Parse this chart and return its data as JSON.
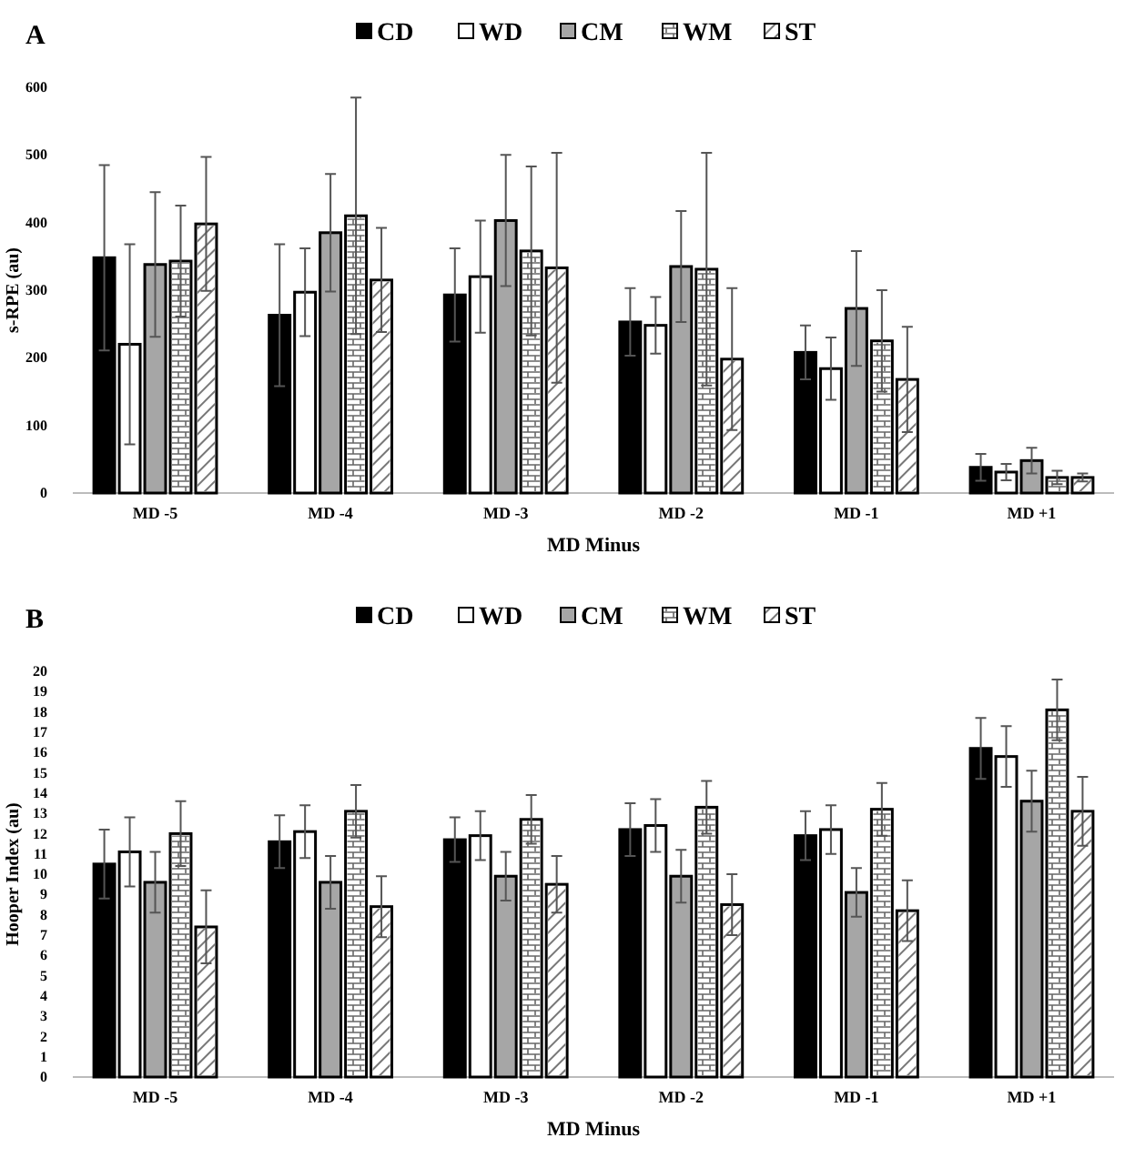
{
  "chart_data": [
    {
      "type": "bar",
      "title": "A",
      "xlabel": "MD Minus",
      "ylabel": "s-RPE (au)",
      "categories": [
        "MD -5",
        "MD -4",
        "MD -3",
        "MD -2",
        "MD -1",
        "MD +1"
      ],
      "ylim": [
        0,
        600
      ],
      "yticks": [
        0,
        100,
        200,
        300,
        400,
        500,
        600
      ],
      "legend": "top",
      "grid": false,
      "series": [
        {
          "name": "CD",
          "color": "#000000",
          "values": [
            348,
            263,
            293,
            253,
            208,
            38
          ],
          "errors": [
            137,
            105,
            69,
            50,
            40,
            20
          ]
        },
        {
          "name": "WD",
          "color": "#ffffff",
          "values": [
            220,
            297,
            320,
            248,
            184,
            31
          ],
          "errors": [
            148,
            65,
            83,
            42,
            46,
            12
          ]
        },
        {
          "name": "CM",
          "color": "#a6a6a6",
          "values": [
            338,
            385,
            403,
            335,
            273,
            48
          ],
          "errors": [
            107,
            87,
            97,
            82,
            85,
            19
          ]
        },
        {
          "name": "WM",
          "color": "#ffffff",
          "values": [
            343,
            410,
            358,
            331,
            225,
            23
          ],
          "errors": [
            82,
            175,
            125,
            172,
            75,
            10
          ]
        },
        {
          "name": "ST",
          "color": "#ffffff",
          "values": [
            398,
            315,
            333,
            198,
            168,
            23
          ],
          "errors": [
            99,
            77,
            170,
            105,
            78,
            6
          ]
        }
      ]
    },
    {
      "type": "bar",
      "title": "B",
      "xlabel": "MD Minus",
      "ylabel": "Hooper Index (au)",
      "categories": [
        "MD -5",
        "MD -4",
        "MD -3",
        "MD -2",
        "MD -1",
        "MD +1"
      ],
      "ylim": [
        0,
        20
      ],
      "yticks": [
        0,
        1,
        2,
        3,
        4,
        5,
        6,
        7,
        8,
        9,
        10,
        11,
        12,
        13,
        14,
        15,
        16,
        17,
        18,
        19,
        20
      ],
      "legend": "top",
      "grid": false,
      "series": [
        {
          "name": "CD",
          "color": "#000000",
          "values": [
            10.5,
            11.6,
            11.7,
            12.2,
            11.9,
            16.2
          ],
          "errors": [
            1.7,
            1.3,
            1.1,
            1.3,
            1.2,
            1.5
          ]
        },
        {
          "name": "WD",
          "color": "#ffffff",
          "values": [
            11.1,
            12.1,
            11.9,
            12.4,
            12.2,
            15.8
          ],
          "errors": [
            1.7,
            1.3,
            1.2,
            1.3,
            1.2,
            1.5
          ]
        },
        {
          "name": "CM",
          "color": "#a6a6a6",
          "values": [
            9.6,
            9.6,
            9.9,
            9.9,
            9.1,
            13.6
          ],
          "errors": [
            1.5,
            1.3,
            1.2,
            1.3,
            1.2,
            1.5
          ]
        },
        {
          "name": "WM",
          "color": "#ffffff",
          "values": [
            12.0,
            13.1,
            12.7,
            13.3,
            13.2,
            18.1
          ],
          "errors": [
            1.6,
            1.3,
            1.2,
            1.3,
            1.3,
            1.5
          ]
        },
        {
          "name": "ST",
          "color": "#ffffff",
          "values": [
            7.4,
            8.4,
            9.5,
            8.5,
            8.2,
            13.1
          ],
          "errors": [
            1.8,
            1.5,
            1.4,
            1.5,
            1.5,
            1.7
          ]
        }
      ]
    }
  ]
}
